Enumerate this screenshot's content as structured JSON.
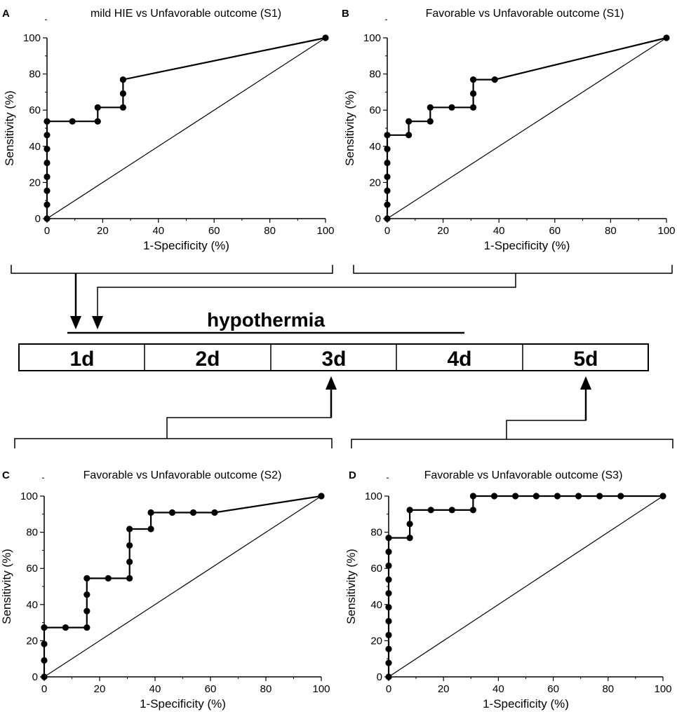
{
  "chart_data": [
    {
      "type": "line",
      "panel": "A",
      "title": "mild HIE vs Unfavorable outcome (S1)",
      "xlabel": "1-Specificity (%)",
      "ylabel": "Sensitivity (%)",
      "xlim": [
        0,
        100
      ],
      "ylim": [
        0,
        100
      ],
      "xticks": [
        "0",
        "20",
        "40",
        "60",
        "80",
        "100"
      ],
      "yticks": [
        "0",
        "20",
        "40",
        "60",
        "80",
        "100"
      ],
      "roc": [
        [
          0,
          0
        ],
        [
          0,
          7.7
        ],
        [
          0,
          15.4
        ],
        [
          0,
          23.1
        ],
        [
          0,
          30.8
        ],
        [
          0,
          38.5
        ],
        [
          0,
          46.2
        ],
        [
          0,
          53.8
        ],
        [
          9.1,
          53.8
        ],
        [
          18.2,
          53.8
        ],
        [
          18.2,
          61.5
        ],
        [
          27.3,
          61.5
        ],
        [
          27.3,
          69.2
        ],
        [
          27.3,
          76.9
        ],
        [
          100,
          100
        ]
      ],
      "reference": [
        [
          0,
          0
        ],
        [
          100,
          100
        ]
      ]
    },
    {
      "type": "line",
      "panel": "B",
      "title": "Favorable vs Unfavorable outcome (S1)",
      "xlabel": "1-Specificity (%)",
      "ylabel": "Sensitivity (%)",
      "xlim": [
        0,
        100
      ],
      "ylim": [
        0,
        100
      ],
      "xticks": [
        "0",
        "20",
        "40",
        "60",
        "80",
        "100"
      ],
      "yticks": [
        "0",
        "20",
        "40",
        "60",
        "80",
        "100"
      ],
      "roc": [
        [
          0,
          0
        ],
        [
          0,
          7.7
        ],
        [
          0,
          15.4
        ],
        [
          0,
          23.1
        ],
        [
          0,
          30.8
        ],
        [
          0,
          38.5
        ],
        [
          0,
          46.2
        ],
        [
          7.7,
          46.2
        ],
        [
          7.7,
          53.8
        ],
        [
          15.4,
          53.8
        ],
        [
          15.4,
          61.5
        ],
        [
          23.1,
          61.5
        ],
        [
          30.8,
          61.5
        ],
        [
          30.8,
          69.2
        ],
        [
          30.8,
          76.9
        ],
        [
          38.5,
          76.9
        ],
        [
          100,
          100
        ]
      ],
      "reference": [
        [
          0,
          0
        ],
        [
          100,
          100
        ]
      ]
    },
    {
      "type": "line",
      "panel": "C",
      "title": "Favorable vs Unfavorable outcome (S2)",
      "xlabel": "1-Specificity (%)",
      "ylabel": "Sensitivity (%)",
      "xlim": [
        0,
        100
      ],
      "ylim": [
        0,
        100
      ],
      "xticks": [
        "0",
        "20",
        "40",
        "60",
        "80",
        "100"
      ],
      "yticks": [
        "0",
        "20",
        "40",
        "60",
        "80",
        "100"
      ],
      "roc": [
        [
          0,
          0
        ],
        [
          0,
          9.1
        ],
        [
          0,
          18.2
        ],
        [
          0,
          27.3
        ],
        [
          7.7,
          27.3
        ],
        [
          15.4,
          27.3
        ],
        [
          15.4,
          36.4
        ],
        [
          15.4,
          45.5
        ],
        [
          15.4,
          54.5
        ],
        [
          23.1,
          54.5
        ],
        [
          30.8,
          54.5
        ],
        [
          30.8,
          63.6
        ],
        [
          30.8,
          72.7
        ],
        [
          30.8,
          81.8
        ],
        [
          38.5,
          81.8
        ],
        [
          38.5,
          90.9
        ],
        [
          46.2,
          90.9
        ],
        [
          53.8,
          90.9
        ],
        [
          61.5,
          90.9
        ],
        [
          100,
          100
        ]
      ],
      "reference": [
        [
          0,
          0
        ],
        [
          100,
          100
        ]
      ]
    },
    {
      "type": "line",
      "panel": "D",
      "title": "Favorable vs Unfavorable outcome (S3)",
      "xlabel": "1-Specificity (%)",
      "ylabel": "Sensitivity (%)",
      "xlim": [
        0,
        100
      ],
      "ylim": [
        0,
        100
      ],
      "xticks": [
        "0",
        "20",
        "40",
        "60",
        "80",
        "100"
      ],
      "yticks": [
        "0",
        "20",
        "40",
        "60",
        "80",
        "100"
      ],
      "roc": [
        [
          0,
          0
        ],
        [
          0,
          7.7
        ],
        [
          0,
          15.4
        ],
        [
          0,
          23.1
        ],
        [
          0,
          30.8
        ],
        [
          0,
          38.5
        ],
        [
          0,
          46.2
        ],
        [
          0,
          53.8
        ],
        [
          0,
          61.5
        ],
        [
          0,
          69.2
        ],
        [
          0,
          76.9
        ],
        [
          7.7,
          76.9
        ],
        [
          7.7,
          84.6
        ],
        [
          7.7,
          92.3
        ],
        [
          15.4,
          92.3
        ],
        [
          23.1,
          92.3
        ],
        [
          30.8,
          92.3
        ],
        [
          30.8,
          100
        ],
        [
          38.5,
          100
        ],
        [
          46.2,
          100
        ],
        [
          53.8,
          100
        ],
        [
          61.5,
          100
        ],
        [
          69.2,
          100
        ],
        [
          76.9,
          100
        ],
        [
          84.6,
          100
        ],
        [
          100,
          100
        ]
      ],
      "reference": [
        [
          0,
          0
        ],
        [
          100,
          100
        ]
      ]
    }
  ],
  "timeline": {
    "hypothermia_label": "hypothermia",
    "days": [
      "1d",
      "2d",
      "3d",
      "4d",
      "5d"
    ]
  }
}
